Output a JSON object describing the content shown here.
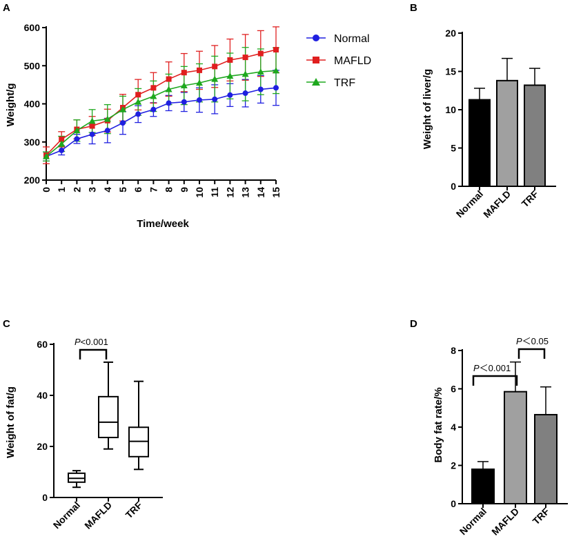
{
  "chart_data": [
    {
      "panel": "A",
      "type": "line",
      "xlabel": "Time/week",
      "ylabel": "Weight/g",
      "x": [
        0,
        1,
        2,
        3,
        4,
        5,
        6,
        7,
        8,
        9,
        10,
        11,
        12,
        13,
        14,
        15
      ],
      "xlim": [
        0,
        15
      ],
      "ylim": [
        200,
        600
      ],
      "yticks": [
        200,
        300,
        400,
        500,
        600
      ],
      "series": [
        {
          "name": "Normal",
          "color": "#1f1fe0",
          "marker": "circle",
          "values": [
            262,
            278,
            308,
            320,
            330,
            350,
            373,
            385,
            402,
            405,
            410,
            412,
            423,
            428,
            438,
            442
          ],
          "errors": [
            12,
            12,
            12,
            25,
            32,
            30,
            22,
            18,
            20,
            25,
            32,
            38,
            30,
            36,
            36,
            46
          ]
        },
        {
          "name": "MAFLD",
          "color": "#e01f1f",
          "marker": "square",
          "values": [
            265,
            307,
            333,
            342,
            356,
            390,
            424,
            442,
            465,
            482,
            488,
            498,
            515,
            522,
            532,
            542
          ],
          "errors": [
            22,
            20,
            25,
            25,
            30,
            35,
            40,
            40,
            45,
            50,
            50,
            55,
            55,
            60,
            60,
            60
          ]
        },
        {
          "name": "TRF",
          "color": "#1ea81e",
          "marker": "triangle",
          "values": [
            262,
            295,
            330,
            355,
            360,
            385,
            405,
            420,
            438,
            448,
            455,
            465,
            473,
            478,
            484,
            487
          ],
          "errors": [
            12,
            20,
            28,
            30,
            38,
            35,
            35,
            40,
            40,
            50,
            50,
            60,
            60,
            70,
            60,
            60
          ]
        }
      ]
    },
    {
      "panel": "B",
      "type": "bar",
      "ylabel": "Weight of liver/g",
      "categories": [
        "Normal",
        "MAFLD",
        "TRF"
      ],
      "values": [
        11.3,
        13.8,
        13.2
      ],
      "errors": [
        1.5,
        2.9,
        2.2
      ],
      "colors": [
        "#000000",
        "#a0a0a0",
        "#808080"
      ],
      "ylim": [
        0,
        20
      ],
      "yticks": [
        0,
        5,
        10,
        15,
        20
      ]
    },
    {
      "panel": "C",
      "type": "box",
      "ylabel": "Weight of fat/g",
      "categories": [
        "Normal",
        "MAFLD",
        "TRF"
      ],
      "boxes": [
        {
          "min": 4,
          "q1": 6,
          "median": 7.5,
          "q3": 9.5,
          "max": 10.5
        },
        {
          "min": 19,
          "q1": 23.5,
          "median": 29.5,
          "q3": 39.5,
          "max": 53
        },
        {
          "min": 11,
          "q1": 16,
          "median": 22,
          "q3": 27.5,
          "max": 45.5
        }
      ],
      "ylim": [
        0,
        60
      ],
      "yticks": [
        0,
        20,
        40,
        60
      ],
      "annotations": [
        {
          "from": 0,
          "to": 1,
          "label_p": "P",
          "label_rest": "<0.001"
        }
      ]
    },
    {
      "panel": "D",
      "type": "bar",
      "ylabel": "Body fat rate/%",
      "categories": [
        "Normal",
        "MAFLD",
        "TRF"
      ],
      "values": [
        1.8,
        5.85,
        4.65
      ],
      "errors": [
        0.4,
        1.55,
        1.45
      ],
      "colors": [
        "#000000",
        "#a0a0a0",
        "#808080"
      ],
      "ylim": [
        0,
        8
      ],
      "yticks": [
        0,
        2,
        4,
        6,
        8
      ],
      "annotations": [
        {
          "from": 0,
          "to": 1,
          "label_p": "P",
          "label_rest": "＜0.001"
        },
        {
          "from": 1,
          "to": 2,
          "label_p": "P",
          "label_rest": "＜0.05"
        }
      ]
    }
  ]
}
